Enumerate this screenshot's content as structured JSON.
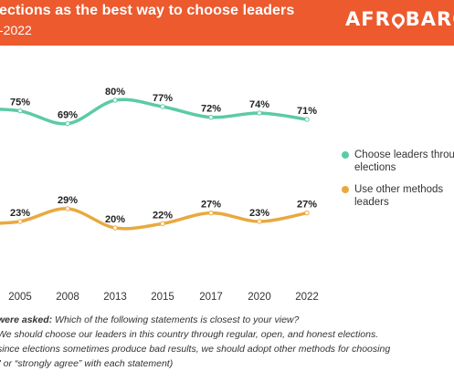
{
  "header": {
    "title": "ections as the best way to choose leaders",
    "subtitle": "-2022",
    "brand": "AFROBARO",
    "brand_part1": "AFR",
    "brand_part2": "BARO",
    "bg_color": "#ec5a2e"
  },
  "chart_data": {
    "type": "line",
    "x": [
      "2005",
      "2008",
      "2013",
      "2015",
      "2017",
      "2020",
      "2022"
    ],
    "ylim": [
      0,
      100
    ],
    "grid": false,
    "legend_position": "right",
    "series": [
      {
        "name": "Choose leaders throu elections",
        "color": "#5ccba3",
        "values": [
          75,
          69,
          80,
          77,
          72,
          74,
          71
        ],
        "labels": [
          "75%",
          "69%",
          "80%",
          "77%",
          "72%",
          "74%",
          "71%"
        ]
      },
      {
        "name": "Use other methods leaders",
        "color": "#e9a93f",
        "values": [
          23,
          29,
          20,
          22,
          27,
          23,
          27
        ],
        "labels": [
          "23%",
          "29%",
          "20%",
          "22%",
          "27%",
          "23%",
          "27%"
        ]
      }
    ]
  },
  "legend": {
    "items": [
      {
        "line1": "Choose leaders throu",
        "line2": "elections",
        "color": "#5ccba3"
      },
      {
        "line1": "Use other methods",
        "line2": "leaders",
        "color": "#e9a93f"
      }
    ]
  },
  "footnote": {
    "line1_bold": "were asked:",
    "line1_rest": " Which of the following statements is closest to your view?",
    "line2": "We should choose our leaders in this country through regular, open, and honest elections.",
    "line3": "since elections sometimes produce bad results, we should adopt other methods for choosing",
    "line4": "\" or “strongly agree” with each statement)"
  }
}
